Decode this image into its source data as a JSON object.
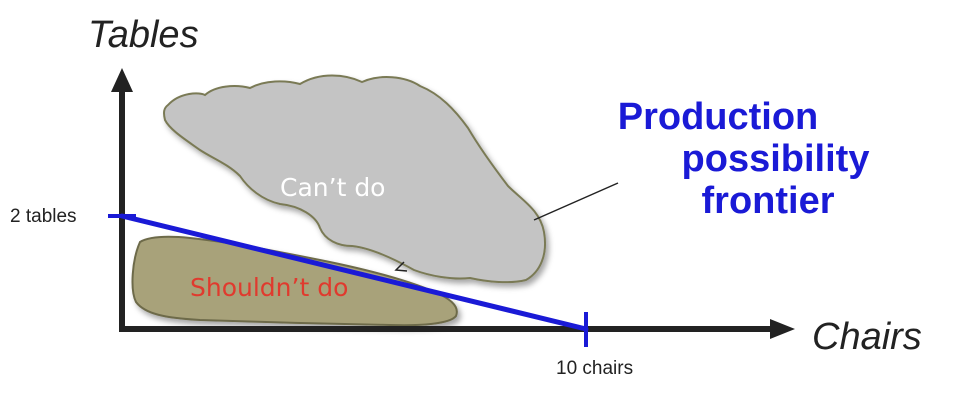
{
  "axes": {
    "y_title": "Tables",
    "x_title": "Chairs",
    "y_tick_label": "2 tables",
    "x_tick_label": "10 chairs",
    "axis_color": "#222222"
  },
  "regions": {
    "cant_do": {
      "label": "Can’t do",
      "fill": "#c4c4c4",
      "stroke": "#7a7a55",
      "text_color": "#ffffff"
    },
    "shouldnt_do": {
      "label": "Shouldn’t do",
      "fill": "#a8a27a",
      "stroke": "#6d6a4a",
      "text_color": "#e03a2e"
    }
  },
  "frontier": {
    "lines": [
      "Production",
      "possibility",
      "frontier"
    ],
    "color": "#1a1ad6"
  }
}
